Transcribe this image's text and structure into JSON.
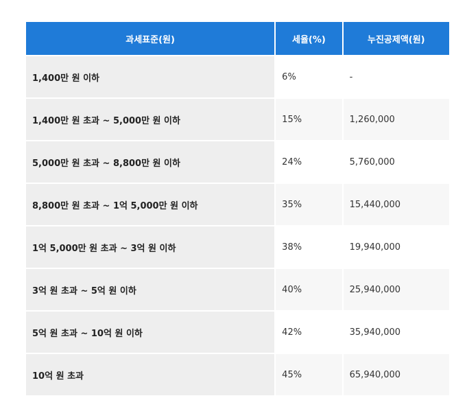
{
  "table": {
    "headers": {
      "bracket": "과세표준(원)",
      "rate": "세율(%)",
      "deduction": "누진공제액(원)"
    },
    "rows": [
      {
        "bracket": "1,400만 원 이하",
        "rate": "6%",
        "deduction": "-"
      },
      {
        "bracket": "1,400만 원 초과 ~ 5,000만 원 이하",
        "rate": "15%",
        "deduction": "1,260,000"
      },
      {
        "bracket": "5,000만 원 초과 ~ 8,800만 원 이하",
        "rate": "24%",
        "deduction": "5,760,000"
      },
      {
        "bracket": "8,800만 원 초과 ~ 1억 5,000만 원 이하",
        "rate": "35%",
        "deduction": "15,440,000"
      },
      {
        "bracket": "1억 5,000만 원 초과 ~ 3억 원 이하",
        "rate": "38%",
        "deduction": "19,940,000"
      },
      {
        "bracket": "3억 원 초과 ~ 5억 원 이하",
        "rate": "40%",
        "deduction": "25,940,000"
      },
      {
        "bracket": "5억 원 초과 ~ 10억 원 이하",
        "rate": "42%",
        "deduction": "35,940,000"
      },
      {
        "bracket": "10억 원 초과",
        "rate": "45%",
        "deduction": "65,940,000"
      }
    ]
  },
  "colors": {
    "header_bg": "#1f7bd8",
    "header_text": "#ffffff",
    "bracket_bg": "#eeeeee",
    "alt_row_bg": "#f7f7f7"
  }
}
